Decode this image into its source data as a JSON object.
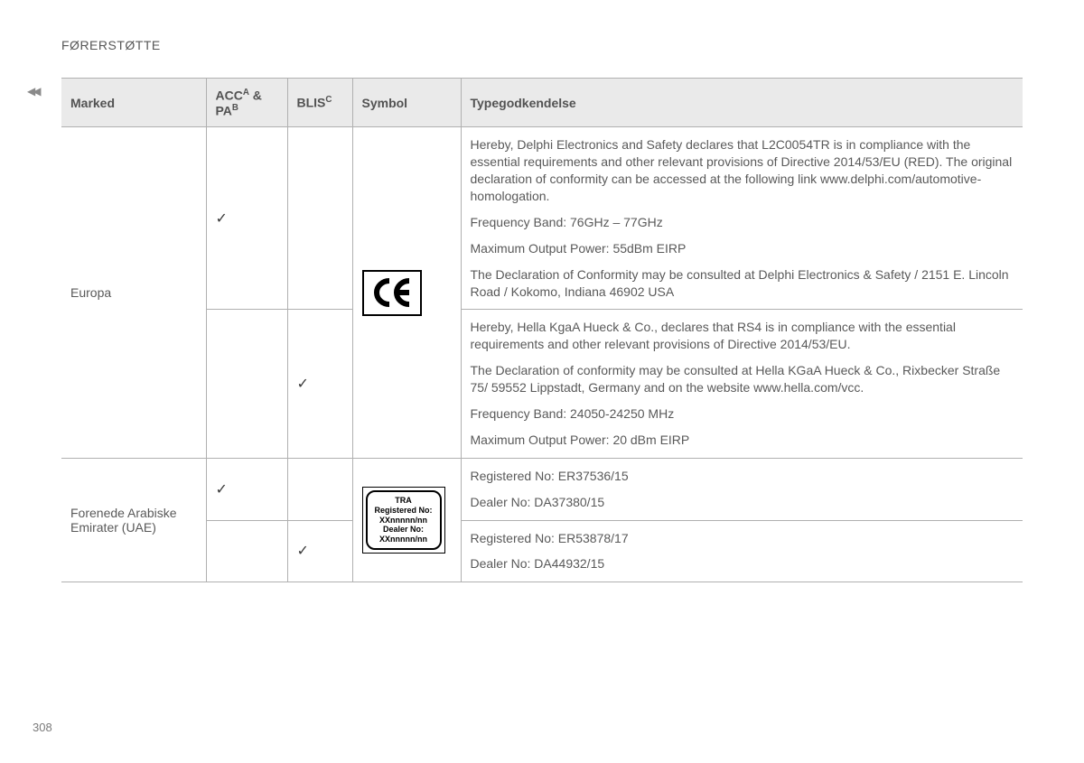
{
  "section_heading": "FØRERSTØTTE",
  "page_number": "308",
  "table": {
    "headers": {
      "marked": "Marked",
      "acc_pa_html": "ACC<sup>A</sup> &amp; PA<sup>B</sup>",
      "blis_html": "BLIS<sup>C</sup>",
      "symbol": "Symbol",
      "type": "Typegodkendelse"
    },
    "rows": {
      "europa": {
        "label": "Europa",
        "row1": {
          "acc_check": "✓",
          "blis_check": "",
          "type_paragraphs": [
            "Hereby, Delphi Electronics and Safety declares that L2C0054TR is in compliance with the essential requirements and other relevant provisions of Directive 2014/53/EU (RED). The original declaration of conformity can be accessed at the following link www.delphi.com/automotive-homologation.",
            "Frequency Band: 76GHz – 77GHz",
            "Maximum Output Power: 55dBm EIRP",
            "The Declaration of Conformity may be consulted at Delphi Electronics & Safety / 2151 E. Lincoln Road / Kokomo, Indiana 46902 USA"
          ]
        },
        "row2": {
          "acc_check": "",
          "blis_check": "✓",
          "type_paragraphs": [
            "Hereby, Hella KgaA Hueck & Co., declares that RS4 is in compliance with the essential requirements and other relevant provisions of Directive 2014/53/EU.",
            "The Declaration of conformity may be consulted at Hella KGaA Hueck & Co., Rixbecker Straße 75/ 59552 Lippstadt, Germany and on the website www.hella.com/vcc.",
            "Frequency Band: 24050-24250 MHz",
            "Maximum Output Power: 20 dBm EIRP"
          ]
        }
      },
      "uae": {
        "label": "Forenede Arabiske Emirater (UAE)",
        "tra_lines": [
          "TRA",
          "Registered No:",
          "XXnnnnn/nn",
          "Dealer No:",
          "XXnnnnn/nn"
        ],
        "row1": {
          "acc_check": "✓",
          "blis_check": "",
          "type_paragraphs": [
            "Registered No: ER37536/15",
            "Dealer No: DA37380/15"
          ]
        },
        "row2": {
          "acc_check": "",
          "blis_check": "✓",
          "type_paragraphs": [
            "Registered No: ER53878/17",
            "Dealer No: DA44932/15"
          ]
        }
      }
    }
  }
}
